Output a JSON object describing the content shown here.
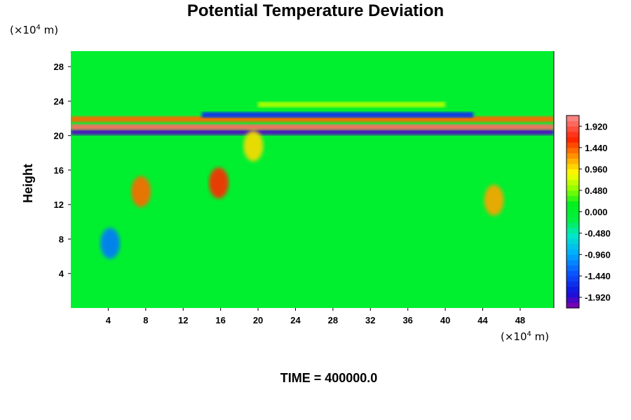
{
  "chart_data": {
    "type": "heatmap",
    "title": "Potential Temperature Deviation",
    "ylabel": "Height",
    "xunit_prefix": "(×10",
    "xunit_exp": "4",
    "xunit_suffix": " m)",
    "yunit_prefix": "(×10",
    "yunit_exp": "4",
    "yunit_suffix": " m)",
    "footer": "TIME = 400000.0",
    "xlim": [
      0,
      51.6
    ],
    "ylim": [
      0,
      29.8
    ],
    "x_ticks": [
      "4",
      "8",
      "12",
      "16",
      "20",
      "24",
      "28",
      "32",
      "36",
      "40",
      "44",
      "48"
    ],
    "y_ticks": [
      "4",
      "8",
      "12",
      "16",
      "20",
      "24",
      "28"
    ],
    "colorbar": {
      "range": [
        -2.16,
        2.16
      ],
      "tick_values": [
        1.92,
        1.44,
        0.96,
        0.48,
        0.0,
        -0.48,
        -0.96,
        -1.44,
        -1.92
      ],
      "tick_labels": [
        "1.920",
        "1.440",
        "0.960",
        "0.480",
        "0.000",
        "-0.480",
        "-0.960",
        "-1.440",
        "-1.920"
      ]
    },
    "background_value": 0.0,
    "features": [
      {
        "name": "layer",
        "y": 20.4,
        "x_from": 0,
        "x_to": 51.6,
        "value": -2.0
      },
      {
        "name": "layer",
        "y": 21.0,
        "x_from": 0,
        "x_to": 51.6,
        "value": 2.0
      },
      {
        "name": "layer",
        "y": 21.9,
        "x_from": 0,
        "x_to": 51.6,
        "value": 1.4
      },
      {
        "name": "layer",
        "y": 22.4,
        "x_from": 14,
        "x_to": 43,
        "value": -1.6
      },
      {
        "name": "layer",
        "y": 23.6,
        "x_from": 20,
        "x_to": 40,
        "value": 0.6
      },
      {
        "name": "blob",
        "x": 15.8,
        "y": 14.5,
        "value": 1.6
      },
      {
        "name": "blob",
        "x": 7.5,
        "y": 13.5,
        "value": 1.4
      },
      {
        "name": "blob",
        "x": 45.2,
        "y": 12.5,
        "value": 1.2
      },
      {
        "name": "blob",
        "x": 4.2,
        "y": 7.5,
        "value": -1.2
      },
      {
        "name": "blob",
        "x": 19.5,
        "y": 18.8,
        "value": 1.0
      }
    ]
  }
}
